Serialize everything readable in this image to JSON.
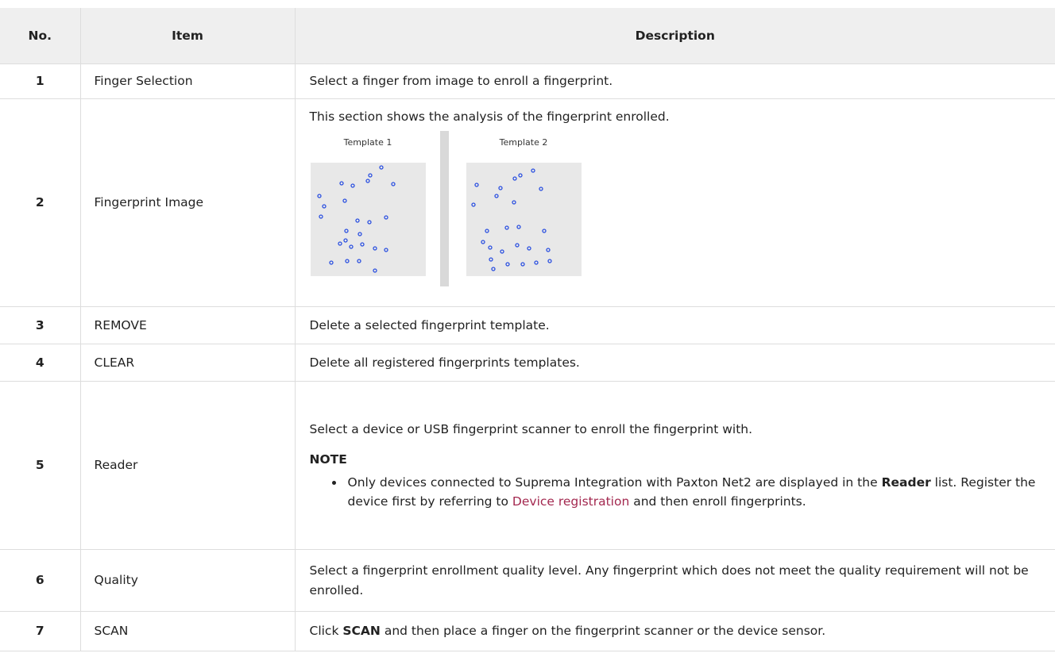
{
  "table": {
    "headers": [
      "No.",
      "Item",
      "Description"
    ],
    "rows": [
      {
        "no": "1",
        "item": "Finger Selection",
        "description": [
          "Select a finger from image to enroll a fingerprint."
        ]
      },
      {
        "no": "2",
        "item": "Fingerprint Image",
        "description": [
          "This section shows the analysis of the fingerprint enrolled."
        ],
        "templates": [
          "Template 1",
          "Template 2"
        ]
      },
      {
        "no": "3",
        "item": "REMOVE",
        "description": [
          "Delete a selected fingerprint template."
        ]
      },
      {
        "no": "4",
        "item": "CLEAR",
        "description": [
          "Delete all registered fingerprints templates."
        ]
      },
      {
        "no": "5",
        "item": "Reader",
        "description": [
          "Select a device or USB fingerprint scanner to enroll the fingerprint with."
        ],
        "note": {
          "label": "NOTE",
          "items": [
            [
              "Only devices connected to Suprema Integration with Paxton Net2 are displayed in the ",
              "Reader",
              " list. Register the device first by referring to ",
              "Device registration",
              " and then enroll fingerprints."
            ]
          ]
        }
      },
      {
        "no": "6",
        "item": "Quality",
        "description": [
          "Select a fingerprint enrollment quality level. Any fingerprint which does not meet the quality requirement will not be enrolled."
        ]
      },
      {
        "no": "7",
        "item": "SCAN",
        "description": [
          "Click ",
          "SCAN",
          " and then place a finger on the fingerprint scanner or the device sensor."
        ]
      }
    ]
  }
}
